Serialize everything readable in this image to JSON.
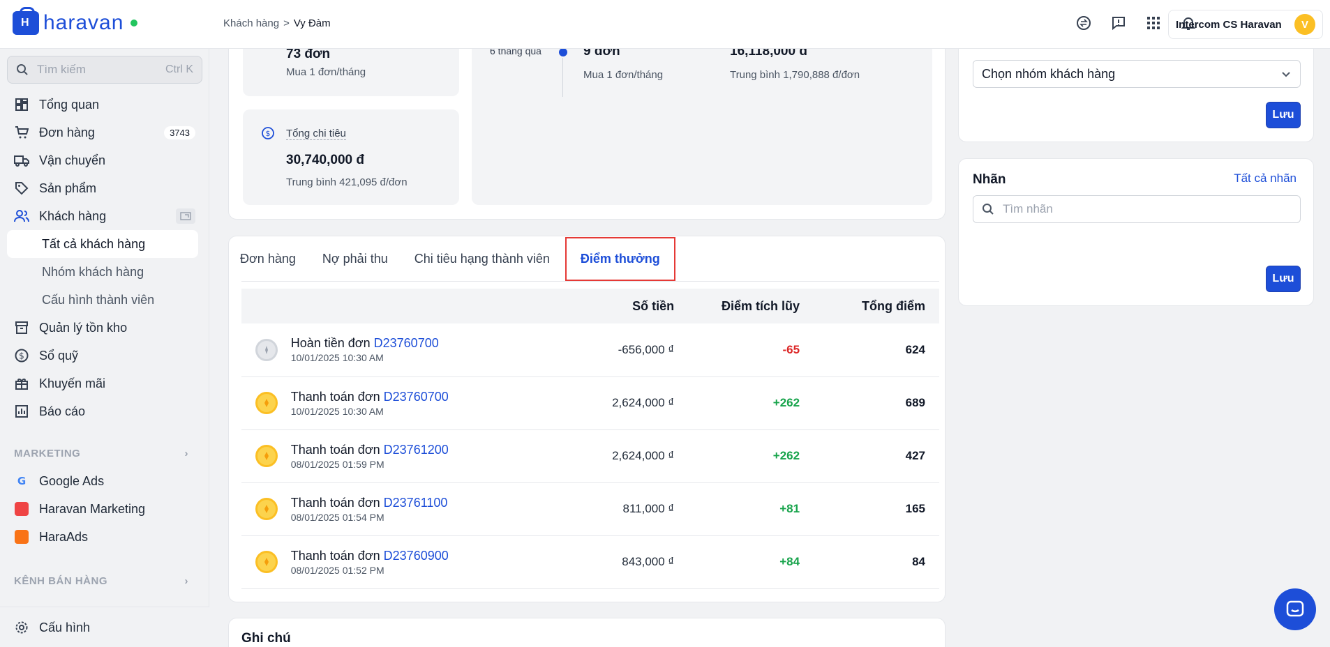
{
  "topbar": {
    "brand": "haravan",
    "breadcrumb": {
      "parent": "Khách hàng",
      "separator": ">",
      "current": "Vy Đàm"
    },
    "icons": [
      "exchange-icon",
      "feedback-icon",
      "apps-grid-icon",
      "bell-icon"
    ],
    "account": {
      "name": "Intercom CS Haravan",
      "avatar_initial": "V"
    }
  },
  "sidebar": {
    "search": {
      "placeholder": "Tìm kiếm",
      "shortcut": "Ctrl K"
    },
    "items": [
      {
        "label": "Tổng quan",
        "icon": "dashboard-icon"
      },
      {
        "label": "Đơn hàng",
        "icon": "cart-icon",
        "badge": "3743"
      },
      {
        "label": "Vận chuyển",
        "icon": "truck-icon"
      },
      {
        "label": "Sản phẩm",
        "icon": "tag-icon"
      },
      {
        "label": "Khách hàng",
        "icon": "users-icon"
      },
      {
        "label": "Quản lý tồn kho",
        "icon": "box-icon"
      },
      {
        "label": "Sổ quỹ",
        "icon": "dollar-icon"
      },
      {
        "label": "Khuyến mãi",
        "icon": "gift-icon"
      },
      {
        "label": "Báo cáo",
        "icon": "chart-icon"
      }
    ],
    "sub_items": [
      {
        "label": "Tất cả khách hàng",
        "active": true
      },
      {
        "label": "Nhóm khách hàng"
      },
      {
        "label": "Cấu hình thành viên"
      }
    ],
    "marketing_title": "MARKETING",
    "marketing_items": [
      {
        "label": "Google Ads",
        "icon": "google-icon"
      },
      {
        "label": "Haravan Marketing",
        "icon": "haravan-marketing-icon"
      },
      {
        "label": "HaraAds",
        "icon": "haraads-icon"
      }
    ],
    "sales_title": "KÊNH BÁN HÀNG",
    "footer_label": "Cấu hình"
  },
  "stats": {
    "orders_value": "73 đơn",
    "orders_sub": "Mua 1 đơn/tháng",
    "spend_label": "Tổng chi tiêu",
    "spend_value": "30,740,000 đ",
    "spend_sub": "Trung bình 421,095 đ/đơn",
    "period_label": "6 tháng qua",
    "period_orders": "9 đơn",
    "period_orders_sub": "Mua 1 đơn/tháng",
    "period_spend": "16,118,000 đ",
    "period_spend_sub": "Trung bình 1,790,888 đ/đơn"
  },
  "tabs": [
    "Đơn hàng",
    "Nợ phải thu",
    "Chi tiêu hạng thành viên",
    "Điểm thưởng"
  ],
  "table": {
    "headers": {
      "amount": "Số tiền",
      "points": "Điểm tích lũy",
      "total": "Tổng điểm"
    },
    "rows": [
      {
        "action": "Hoàn tiền đơn",
        "order": "D23760700",
        "date": "10/01/2025 10:30 AM",
        "amount": "-656,000 ₫",
        "points": "-65",
        "total": "624",
        "coin": "silver"
      },
      {
        "action": "Thanh toán đơn",
        "order": "D23760700",
        "date": "10/01/2025 10:30 AM",
        "amount": "2,624,000 ₫",
        "points": "+262",
        "total": "689",
        "coin": "gold"
      },
      {
        "action": "Thanh toán đơn",
        "order": "D23761200",
        "date": "08/01/2025 01:59 PM",
        "amount": "2,624,000 ₫",
        "points": "+262",
        "total": "427",
        "coin": "gold"
      },
      {
        "action": "Thanh toán đơn",
        "order": "D23761100",
        "date": "08/01/2025 01:54 PM",
        "amount": "811,000 ₫",
        "points": "+81",
        "total": "165",
        "coin": "gold"
      },
      {
        "action": "Thanh toán đơn",
        "order": "D23760900",
        "date": "08/01/2025 01:52 PM",
        "amount": "843,000 ₫",
        "points": "+84",
        "total": "84",
        "coin": "gold"
      }
    ]
  },
  "notes_title": "Ghi chú",
  "right": {
    "group_select": "Chọn nhóm khách hàng",
    "save_label": "Lưu",
    "tags_title": "Nhãn",
    "tags_link": "Tất cả nhãn",
    "tags_placeholder": "Tìm nhãn"
  },
  "colors": {
    "primary": "#1d4ed8",
    "positive": "#16a34a",
    "negative": "#dc2626",
    "highlight": "#e53935"
  }
}
